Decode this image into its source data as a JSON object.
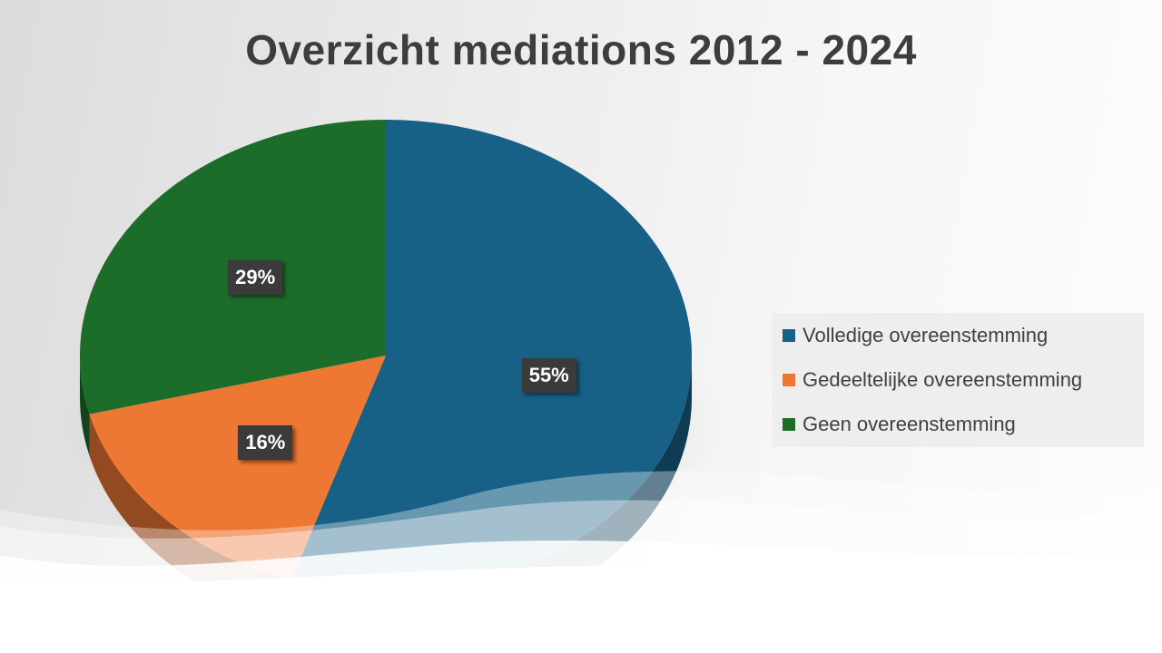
{
  "title": "Overzicht mediations 2012 - 2024",
  "chart_data": {
    "type": "pie",
    "title": "Overzicht mediations 2012 - 2024",
    "legend_position": "right",
    "slices": [
      {
        "name": "Volledige overeenstemming",
        "value": 55,
        "label": "55%",
        "color": "#176086"
      },
      {
        "name": "Gedeeltelijke overeenstemming",
        "value": 16,
        "label": "16%",
        "color": "#ee7733"
      },
      {
        "name": "Geen overeenstemming",
        "value": 29,
        "label": "29%",
        "color": "#1d6d2a"
      }
    ]
  }
}
